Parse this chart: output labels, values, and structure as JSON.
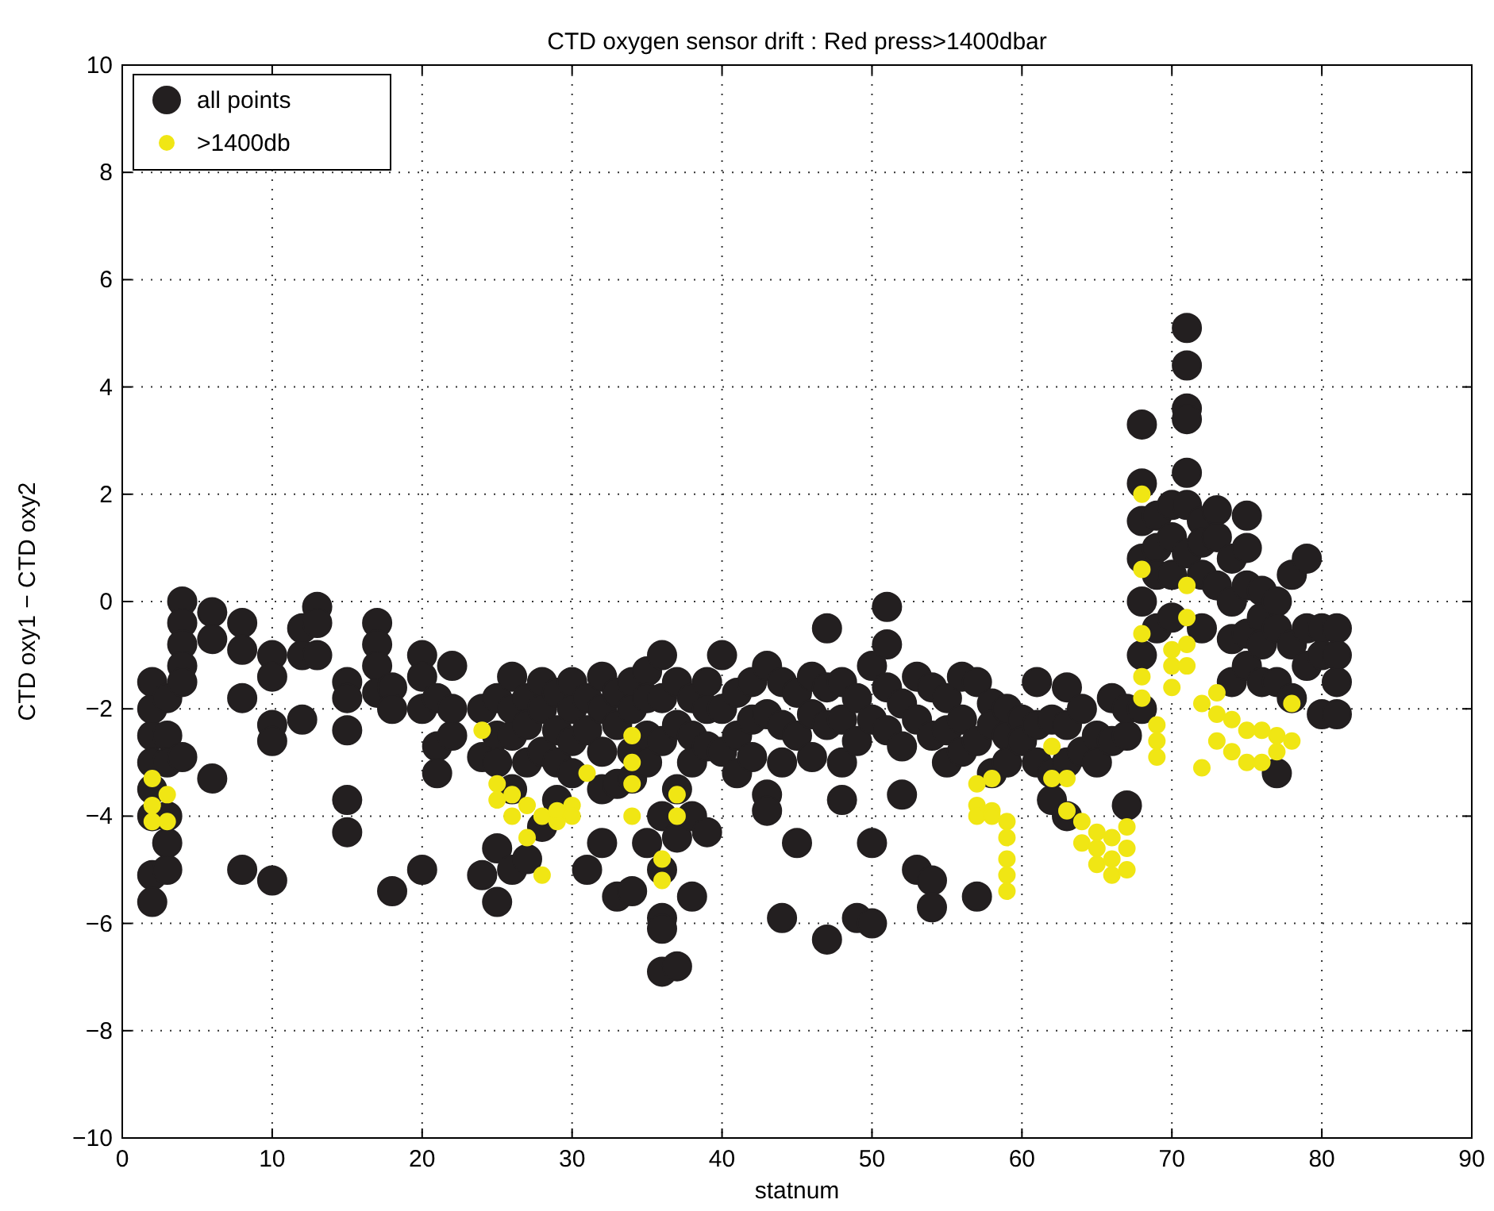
{
  "chart_data": {
    "type": "scatter",
    "title": "CTD oxygen sensor drift : Red press>1400dbar",
    "xlabel": "statnum",
    "ylabel": "CTD oxy1 − CTD oxy2",
    "xlim": [
      0,
      90
    ],
    "ylim": [
      -10,
      10
    ],
    "xticks": [
      0,
      10,
      20,
      30,
      40,
      50,
      60,
      70,
      80,
      90
    ],
    "yticks": [
      -10,
      -8,
      -6,
      -4,
      -2,
      0,
      2,
      4,
      6,
      8,
      10
    ],
    "grid": true,
    "legend": "top left",
    "marker": "circle",
    "series": [
      {
        "name": "all points",
        "color": "#231f20",
        "x": [
          2,
          2,
          2,
          2,
          2,
          2,
          2,
          2,
          3,
          3,
          3,
          3,
          3,
          3,
          4,
          4,
          4,
          4,
          4,
          4,
          6,
          6,
          6,
          8,
          8,
          8,
          8,
          10,
          10,
          10,
          10,
          10,
          12,
          12,
          12,
          13,
          13,
          13,
          15,
          15,
          15,
          15,
          15,
          17,
          17,
          17,
          17,
          18,
          18,
          18,
          20,
          20,
          20,
          20,
          21,
          21,
          21,
          22,
          22,
          22,
          24,
          24,
          24,
          25,
          25,
          25,
          25,
          25,
          26,
          26,
          26,
          26,
          26,
          27,
          27,
          27,
          27,
          28,
          28,
          28,
          28,
          29,
          29,
          29,
          29,
          30,
          30,
          30,
          30,
          31,
          31,
          31,
          32,
          32,
          32,
          32,
          32,
          33,
          33,
          33,
          33,
          34,
          34,
          34,
          34,
          34,
          35,
          35,
          35,
          35,
          35,
          36,
          36,
          36,
          36,
          36,
          36,
          36,
          36,
          37,
          37,
          37,
          37,
          37,
          38,
          38,
          38,
          38,
          38,
          39,
          39,
          39,
          39,
          40,
          40,
          40,
          41,
          41,
          41,
          42,
          42,
          42,
          43,
          43,
          43,
          43,
          44,
          44,
          44,
          44,
          45,
          45,
          45,
          46,
          46,
          46,
          47,
          47,
          47,
          47,
          48,
          48,
          48,
          48,
          49,
          49,
          49,
          50,
          50,
          50,
          50,
          51,
          51,
          51,
          51,
          52,
          52,
          52,
          53,
          53,
          53,
          54,
          54,
          54,
          54,
          55,
          55,
          55,
          56,
          56,
          56,
          57,
          57,
          57,
          58,
          58,
          58,
          59,
          59,
          59,
          60,
          60,
          61,
          61,
          61,
          62,
          62,
          62,
          63,
          63,
          63,
          63,
          64,
          64,
          65,
          65,
          66,
          66,
          67,
          67,
          67,
          68,
          68,
          68,
          68,
          68,
          68,
          68,
          69,
          69,
          69,
          69,
          70,
          70,
          70,
          70,
          71,
          71,
          71,
          71,
          71,
          71,
          71,
          72,
          72,
          72,
          72,
          73,
          73,
          73,
          74,
          74,
          74,
          74,
          75,
          75,
          75,
          75,
          75,
          76,
          76,
          76,
          76,
          77,
          77,
          77,
          77,
          78,
          78,
          78,
          79,
          79,
          79,
          80,
          80,
          80,
          81,
          81,
          81,
          81
        ],
        "values": [
          -1.5,
          -2,
          -2.5,
          -3,
          -3.5,
          -4,
          -5.1,
          -5.6,
          -1.8,
          -2.5,
          -3,
          -4,
          -4.5,
          -5,
          0,
          -0.4,
          -0.8,
          -1.2,
          -1.5,
          -2.9,
          -0.2,
          -0.7,
          -3.3,
          -0.4,
          -0.9,
          -1.8,
          -5,
          -1,
          -1.4,
          -2.3,
          -2.6,
          -5.2,
          -0.5,
          -1,
          -2.2,
          -0.1,
          -0.4,
          -1,
          -1.5,
          -1.8,
          -2.4,
          -3.7,
          -4.3,
          -0.4,
          -0.8,
          -1.2,
          -1.7,
          -1.6,
          -2,
          -5.4,
          -1,
          -1.4,
          -2,
          -5,
          -1.8,
          -2.7,
          -3.2,
          -1.2,
          -2,
          -2.5,
          -2,
          -2.9,
          -5.1,
          -1.8,
          -2.5,
          -3,
          -4.6,
          -5.6,
          -1.4,
          -2,
          -2.5,
          -3.5,
          -5,
          -1.8,
          -2.3,
          -3,
          -4.8,
          -1.5,
          -2,
          -2.8,
          -4.2,
          -1.7,
          -2.4,
          -3,
          -3.7,
          -1.5,
          -2,
          -2.6,
          -3.2,
          -1.8,
          -2.4,
          -5,
          -1.4,
          -2,
          -2.8,
          -3.5,
          -4.5,
          -1.7,
          -2.3,
          -3.4,
          -5.5,
          -1.5,
          -2,
          -2.8,
          -3.3,
          -5.4,
          -1.3,
          -1.8,
          -2.5,
          -3,
          -4.5,
          -1,
          -1.8,
          -2.6,
          -4,
          -5,
          -5.9,
          -6.1,
          -6.9,
          -1.5,
          -2.3,
          -3.5,
          -4.4,
          -6.8,
          -1.8,
          -2.5,
          -3,
          -4,
          -5.5,
          -1.5,
          -2,
          -2.7,
          -4.3,
          -1,
          -2,
          -2.8,
          -1.7,
          -2.5,
          -3.2,
          -1.5,
          -2.2,
          -2.9,
          -1.2,
          -2.1,
          -3.6,
          -3.9,
          -1.5,
          -2.3,
          -3,
          -5.9,
          -1.7,
          -2.5,
          -4.5,
          -1.4,
          -2.1,
          -2.9,
          -0.5,
          -1.6,
          -2.3,
          -6.3,
          -1.5,
          -2.2,
          -3,
          -3.7,
          -1.8,
          -2.6,
          -5.9,
          -1.2,
          -2.2,
          -4.5,
          -6,
          -0.1,
          -0.8,
          -1.6,
          -2.4,
          -1.9,
          -2.7,
          -3.6,
          -1.4,
          -2.2,
          -5,
          -1.6,
          -2.5,
          -5.2,
          -5.7,
          -1.8,
          -2.4,
          -3,
          -1.4,
          -2.2,
          -2.8,
          -1.5,
          -2.6,
          -5.5,
          -1.9,
          -2.3,
          -3.2,
          -2,
          -2.5,
          -3,
          -2.2,
          -2.6,
          -1.5,
          -2.3,
          -3,
          -2.2,
          -3.2,
          -3.7,
          -1.6,
          -2.3,
          -3,
          -4,
          -2,
          -2.8,
          -2.5,
          -3,
          -1.8,
          -2.6,
          -2,
          -2.5,
          -3.8,
          3.3,
          2.2,
          1.5,
          0.8,
          0,
          -1,
          -2,
          1.6,
          1,
          0.5,
          -0.5,
          1.8,
          1.2,
          0.5,
          -0.3,
          5.1,
          4.4,
          3.6,
          3.4,
          2.4,
          1.8,
          0.9,
          1.5,
          1.1,
          0.5,
          -0.5,
          1.7,
          1.2,
          0.3,
          0.8,
          0,
          -0.7,
          -1.5,
          1.6,
          1,
          0.3,
          -0.6,
          -1.2,
          0.2,
          -0.3,
          -0.8,
          -1.5,
          0,
          -0.5,
          -1.5,
          -3.2,
          0.5,
          -0.8,
          -1.8,
          0.8,
          -0.5,
          -1.2,
          -0.5,
          -1,
          -2.1,
          -0.5,
          -1,
          -1.5,
          -2.1
        ]
      },
      {
        "name": ">1400db",
        "color": "#f0e614",
        "x": [
          2,
          2,
          2,
          3,
          3,
          24,
          25,
          25,
          26,
          26,
          27,
          27,
          28,
          28,
          29,
          29,
          30,
          30,
          31,
          34,
          34,
          34,
          34,
          36,
          36,
          37,
          37,
          57,
          57,
          57,
          58,
          58,
          58,
          59,
          59,
          59,
          59,
          59,
          62,
          62,
          63,
          63,
          64,
          64,
          65,
          65,
          65,
          66,
          66,
          66,
          67,
          67,
          67,
          68,
          68,
          68,
          68,
          68,
          69,
          69,
          69,
          70,
          70,
          70,
          71,
          71,
          71,
          71,
          72,
          72,
          73,
          73,
          73,
          74,
          74,
          75,
          75,
          76,
          76,
          77,
          77,
          78,
          78
        ],
        "values": [
          -3.3,
          -3.8,
          -4.1,
          -3.6,
          -4.1,
          -2.4,
          -3.4,
          -3.7,
          -3.6,
          -4,
          -3.8,
          -4.4,
          -4,
          -5.1,
          -4.1,
          -3.9,
          -3.8,
          -4,
          -3.2,
          -2.5,
          -3,
          -3.4,
          -4,
          -4.8,
          -5.2,
          -3.6,
          -4,
          -3.4,
          -3.8,
          -4,
          -3.3,
          -3.9,
          -4,
          -4.1,
          -4.4,
          -4.8,
          -5.1,
          -5.4,
          -2.7,
          -3.3,
          -3.3,
          -3.9,
          -4.1,
          -4.5,
          -4.3,
          -4.6,
          -4.9,
          -4.4,
          -4.8,
          -5.1,
          -4.2,
          -4.6,
          -5,
          2,
          0.6,
          -0.6,
          -1.4,
          -1.8,
          -2.3,
          -2.6,
          -2.9,
          -1.6,
          -1.2,
          -0.9,
          0.3,
          -0.3,
          -0.8,
          -1.2,
          -1.9,
          -3.1,
          -1.7,
          -2.1,
          -2.6,
          -2.2,
          -2.8,
          -2.4,
          -3,
          -2.4,
          -3,
          -2.5,
          -2.8,
          -1.9,
          -2.6
        ]
      }
    ]
  }
}
